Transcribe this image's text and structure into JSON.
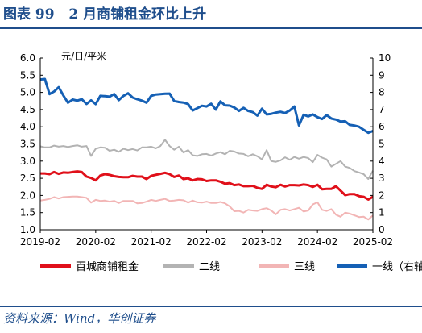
{
  "figure_title": "图表 99   2 月商铺租金环比上升",
  "source": "资料来源：Wind，华创证券",
  "chart_data": {
    "type": "line",
    "unit_label": "元/日/平米",
    "x_ticks": [
      "2019-02",
      "2020-02",
      "2021-02",
      "2022-02",
      "2023-02",
      "2024-02",
      "2025-02"
    ],
    "x_range": [
      "2019-02",
      "2025-02"
    ],
    "left_axis": {
      "ylim": [
        1.0,
        6.0
      ],
      "ticks": [
        "1.0",
        "1.5",
        "2.0",
        "2.5",
        "3.0",
        "3.5",
        "4.0",
        "4.5",
        "5.0",
        "5.5",
        "6.0"
      ]
    },
    "right_axis": {
      "ylim": [
        0,
        10
      ],
      "ticks": [
        "0",
        "1",
        "2",
        "3",
        "4",
        "5",
        "6",
        "7",
        "8",
        "9",
        "10"
      ]
    },
    "legend_position": "bottom",
    "series": [
      {
        "name": "百城商铺租金",
        "color": "#e0101a",
        "axis": "left",
        "width": 3,
        "x": [
          "2019-02",
          "2019-03",
          "2019-04",
          "2019-05",
          "2019-06",
          "2019-07",
          "2019-08",
          "2019-09",
          "2019-10",
          "2019-11",
          "2019-12",
          "2020-01",
          "2020-02",
          "2020-03",
          "2020-04",
          "2020-05",
          "2020-06",
          "2020-07",
          "2020-08",
          "2020-09",
          "2020-10",
          "2020-11",
          "2020-12",
          "2021-01",
          "2021-02",
          "2021-03",
          "2021-04",
          "2021-05",
          "2021-06",
          "2021-07",
          "2021-08",
          "2021-09",
          "2021-10",
          "2021-11",
          "2021-12",
          "2022-01",
          "2022-02",
          "2022-03",
          "2022-04",
          "2022-05",
          "2022-06",
          "2022-07",
          "2022-08",
          "2022-09",
          "2022-10",
          "2022-11",
          "2022-12",
          "2023-01",
          "2023-02",
          "2023-03",
          "2023-04",
          "2023-05",
          "2023-06",
          "2023-07",
          "2023-08",
          "2023-09",
          "2023-10",
          "2023-11",
          "2023-12",
          "2024-01",
          "2024-02",
          "2024-03",
          "2024-04",
          "2024-05",
          "2024-06",
          "2024-07",
          "2024-08",
          "2024-09",
          "2024-10",
          "2024-11",
          "2024-12",
          "2025-01",
          "2025-02"
        ],
        "values": [
          2.64,
          2.64,
          2.62,
          2.68,
          2.63,
          2.67,
          2.66,
          2.68,
          2.7,
          2.68,
          2.55,
          2.51,
          2.44,
          2.58,
          2.62,
          2.6,
          2.56,
          2.54,
          2.53,
          2.53,
          2.57,
          2.55,
          2.55,
          2.48,
          2.57,
          2.6,
          2.63,
          2.66,
          2.62,
          2.54,
          2.58,
          2.48,
          2.5,
          2.44,
          2.48,
          2.47,
          2.42,
          2.44,
          2.44,
          2.4,
          2.34,
          2.36,
          2.3,
          2.32,
          2.27,
          2.27,
          2.28,
          2.22,
          2.19,
          2.31,
          2.26,
          2.24,
          2.31,
          2.26,
          2.3,
          2.3,
          2.29,
          2.32,
          2.3,
          2.25,
          2.31,
          2.18,
          2.19,
          2.19,
          2.27,
          2.14,
          2.01,
          2.04,
          2.04,
          1.98,
          1.96,
          1.88,
          1.96
        ]
      },
      {
        "name": "二线",
        "color": "#b3b3b3",
        "axis": "left",
        "width": 2,
        "x": [
          "2019-02",
          "2019-03",
          "2019-04",
          "2019-05",
          "2019-06",
          "2019-07",
          "2019-08",
          "2019-09",
          "2019-10",
          "2019-11",
          "2019-12",
          "2020-01",
          "2020-02",
          "2020-03",
          "2020-04",
          "2020-05",
          "2020-06",
          "2020-07",
          "2020-08",
          "2020-09",
          "2020-10",
          "2020-11",
          "2020-12",
          "2021-01",
          "2021-02",
          "2021-03",
          "2021-04",
          "2021-05",
          "2021-06",
          "2021-07",
          "2021-08",
          "2021-09",
          "2021-10",
          "2021-11",
          "2021-12",
          "2022-01",
          "2022-02",
          "2022-03",
          "2022-04",
          "2022-05",
          "2022-06",
          "2022-07",
          "2022-08",
          "2022-09",
          "2022-10",
          "2022-11",
          "2022-12",
          "2023-01",
          "2023-02",
          "2023-03",
          "2023-04",
          "2023-05",
          "2023-06",
          "2023-07",
          "2023-08",
          "2023-09",
          "2023-10",
          "2023-11",
          "2023-12",
          "2024-01",
          "2024-02",
          "2024-03",
          "2024-04",
          "2024-05",
          "2024-06",
          "2024-07",
          "2024-08",
          "2024-09",
          "2024-10",
          "2024-11",
          "2024-12",
          "2025-01",
          "2025-02"
        ],
        "values": [
          3.43,
          3.4,
          3.4,
          3.45,
          3.42,
          3.44,
          3.41,
          3.44,
          3.46,
          3.42,
          3.44,
          3.15,
          3.36,
          3.4,
          3.39,
          3.3,
          3.33,
          3.27,
          3.36,
          3.32,
          3.35,
          3.31,
          3.4,
          3.4,
          3.42,
          3.37,
          3.44,
          3.62,
          3.44,
          3.33,
          3.42,
          3.25,
          3.32,
          3.17,
          3.15,
          3.2,
          3.21,
          3.16,
          3.22,
          3.26,
          3.2,
          3.3,
          3.28,
          3.22,
          3.21,
          3.14,
          3.2,
          3.14,
          3.05,
          3.32,
          3.0,
          2.98,
          3.02,
          3.11,
          3.04,
          3.12,
          3.07,
          3.12,
          3.09,
          2.97,
          3.18,
          3.1,
          3.05,
          2.84,
          2.92,
          3.0,
          2.84,
          2.8,
          2.71,
          2.67,
          2.62,
          2.48,
          2.72
        ]
      },
      {
        "name": "三线",
        "color": "#f2b5b5",
        "axis": "left",
        "width": 2,
        "x": [
          "2019-02",
          "2019-03",
          "2019-04",
          "2019-05",
          "2019-06",
          "2019-07",
          "2019-08",
          "2019-09",
          "2019-10",
          "2019-11",
          "2019-12",
          "2020-01",
          "2020-02",
          "2020-03",
          "2020-04",
          "2020-05",
          "2020-06",
          "2020-07",
          "2020-08",
          "2020-09",
          "2020-10",
          "2020-11",
          "2020-12",
          "2021-01",
          "2021-02",
          "2021-03",
          "2021-04",
          "2021-05",
          "2021-06",
          "2021-07",
          "2021-08",
          "2021-09",
          "2021-10",
          "2021-11",
          "2021-12",
          "2022-01",
          "2022-02",
          "2022-03",
          "2022-04",
          "2022-05",
          "2022-06",
          "2022-07",
          "2022-08",
          "2022-09",
          "2022-10",
          "2022-11",
          "2022-12",
          "2023-01",
          "2023-02",
          "2023-03",
          "2023-04",
          "2023-05",
          "2023-06",
          "2023-07",
          "2023-08",
          "2023-09",
          "2023-10",
          "2023-11",
          "2023-12",
          "2024-01",
          "2024-02",
          "2024-03",
          "2024-04",
          "2024-05",
          "2024-06",
          "2024-07",
          "2024-08",
          "2024-09",
          "2024-10",
          "2024-11",
          "2024-12",
          "2025-01",
          "2025-02"
        ],
        "values": [
          1.85,
          1.87,
          1.9,
          1.95,
          1.91,
          1.95,
          1.96,
          1.97,
          1.97,
          1.95,
          1.93,
          1.79,
          1.87,
          1.84,
          1.85,
          1.82,
          1.84,
          1.78,
          1.84,
          1.84,
          1.84,
          1.77,
          1.78,
          1.82,
          1.87,
          1.84,
          1.87,
          1.9,
          1.84,
          1.85,
          1.87,
          1.86,
          1.79,
          1.85,
          1.8,
          1.79,
          1.82,
          1.78,
          1.78,
          1.81,
          1.77,
          1.68,
          1.54,
          1.55,
          1.5,
          1.58,
          1.56,
          1.55,
          1.6,
          1.63,
          1.56,
          1.45,
          1.58,
          1.6,
          1.56,
          1.6,
          1.64,
          1.53,
          1.56,
          1.74,
          1.8,
          1.58,
          1.55,
          1.6,
          1.44,
          1.38,
          1.5,
          1.47,
          1.42,
          1.37,
          1.38,
          1.3,
          1.42
        ]
      },
      {
        "name": "一线（右轴）",
        "color": "#1560b5",
        "axis": "right",
        "width": 3,
        "x": [
          "2019-02",
          "2019-03",
          "2019-04",
          "2019-05",
          "2019-06",
          "2019-07",
          "2019-08",
          "2019-09",
          "2019-10",
          "2019-11",
          "2019-12",
          "2020-01",
          "2020-02",
          "2020-03",
          "2020-04",
          "2020-05",
          "2020-06",
          "2020-07",
          "2020-08",
          "2020-09",
          "2020-10",
          "2020-11",
          "2020-12",
          "2021-01",
          "2021-02",
          "2021-03",
          "2021-04",
          "2021-05",
          "2021-06",
          "2021-07",
          "2021-08",
          "2021-09",
          "2021-10",
          "2021-11",
          "2021-12",
          "2022-01",
          "2022-02",
          "2022-03",
          "2022-04",
          "2022-05",
          "2022-06",
          "2022-07",
          "2022-08",
          "2022-09",
          "2022-10",
          "2022-11",
          "2022-12",
          "2023-01",
          "2023-02",
          "2023-03",
          "2023-04",
          "2023-05",
          "2023-06",
          "2023-07",
          "2023-08",
          "2023-09",
          "2023-10",
          "2023-11",
          "2023-12",
          "2024-01",
          "2024-02",
          "2024-03",
          "2024-04",
          "2024-05",
          "2024-06",
          "2024-07",
          "2024-08",
          "2024-09",
          "2024-10",
          "2024-11",
          "2024-12",
          "2025-01",
          "2025-02"
        ],
        "values": [
          8.75,
          8.78,
          7.9,
          8.05,
          8.3,
          7.82,
          7.4,
          7.58,
          7.52,
          7.6,
          7.33,
          7.54,
          7.32,
          7.8,
          7.78,
          7.75,
          7.9,
          7.55,
          7.8,
          7.95,
          7.7,
          7.6,
          7.52,
          7.4,
          7.8,
          7.88,
          7.9,
          7.92,
          7.93,
          7.5,
          7.44,
          7.41,
          7.32,
          6.95,
          7.08,
          7.22,
          7.18,
          7.34,
          7.0,
          7.48,
          7.25,
          7.23,
          7.12,
          6.92,
          7.1,
          6.92,
          6.85,
          6.65,
          7.05,
          6.72,
          6.75,
          6.82,
          6.87,
          6.8,
          6.95,
          7.18,
          6.08,
          6.7,
          6.6,
          6.72,
          6.56,
          6.45,
          6.68,
          6.48,
          6.42,
          6.3,
          6.32,
          6.11,
          6.07,
          6.0,
          5.82,
          5.65,
          5.75
        ]
      }
    ]
  }
}
